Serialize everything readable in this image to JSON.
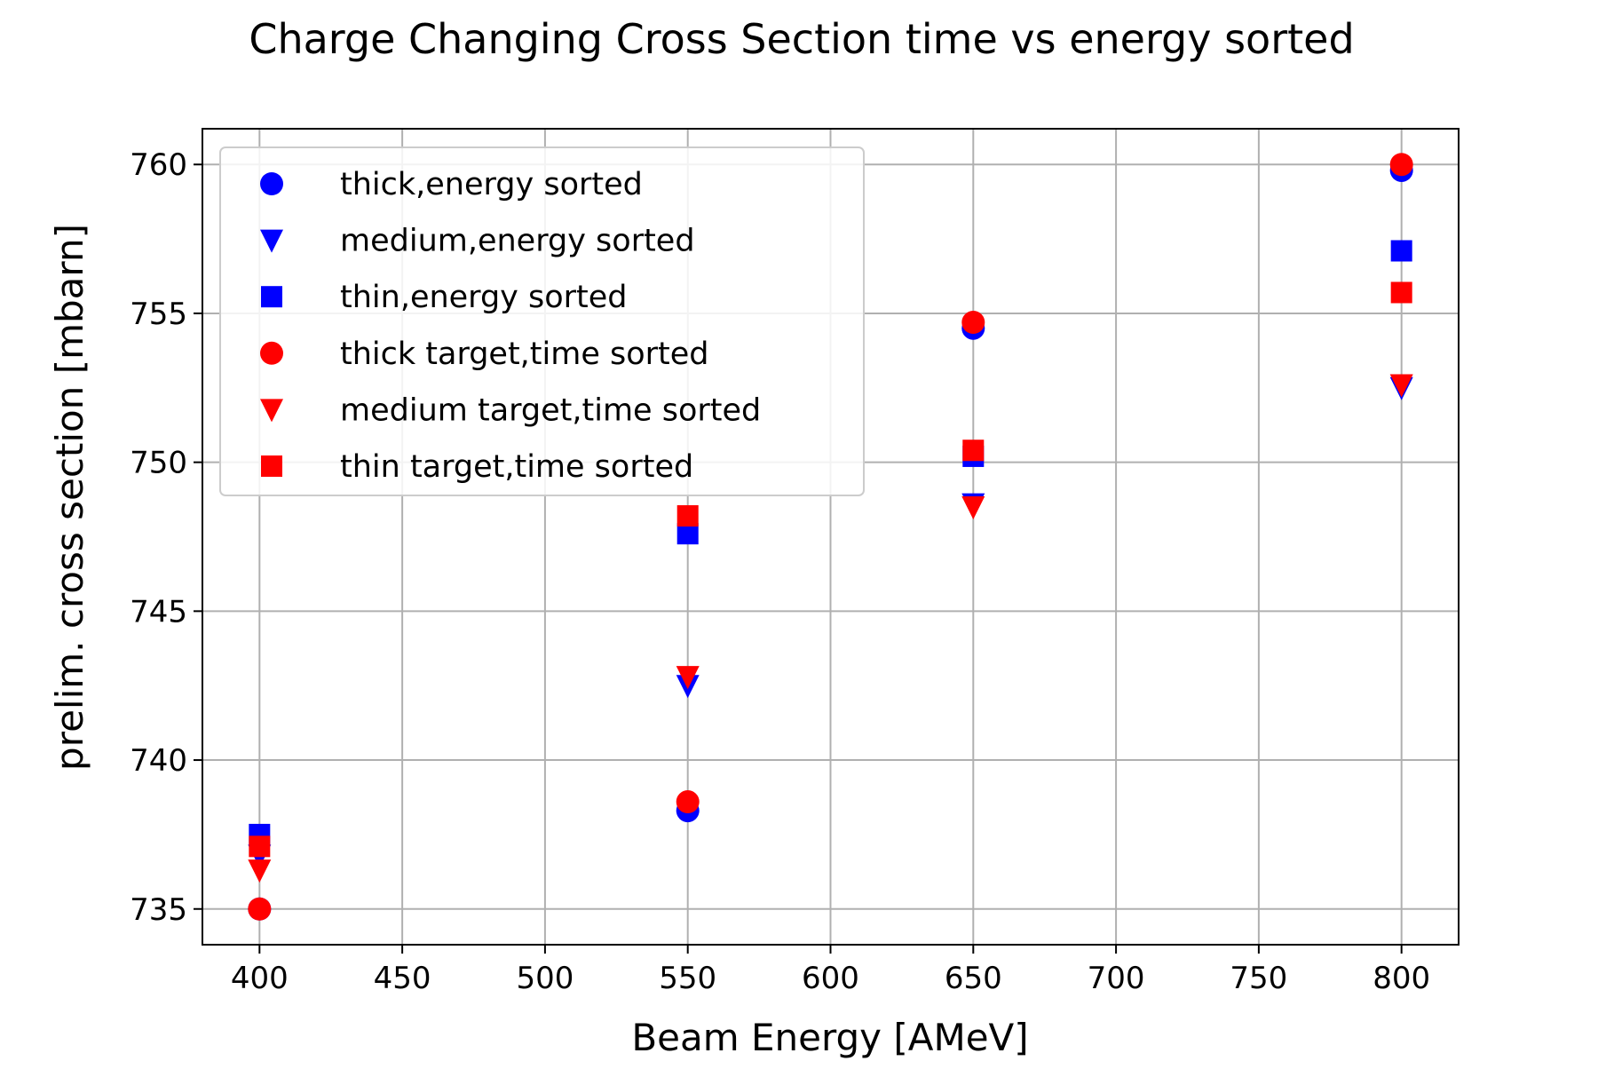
{
  "chart_data": {
    "type": "scatter",
    "title": "Charge Changing Cross Section time vs energy sorted",
    "xlabel": "Beam Energy [AMeV]",
    "ylabel": "prelim. cross section [mbarn]",
    "xlim": [
      380,
      820
    ],
    "ylim": [
      733.8,
      761.2
    ],
    "xticks": [
      400,
      450,
      500,
      550,
      600,
      650,
      700,
      750,
      800
    ],
    "yticks": [
      735,
      740,
      745,
      750,
      755,
      760
    ],
    "grid": true,
    "legend_position": "upper-left",
    "series": [
      {
        "name": "thick,energy sorted",
        "color": "#0000ff",
        "marker": "circle",
        "x": [
          400,
          550,
          650,
          800
        ],
        "y": [
          735.0,
          738.3,
          754.5,
          759.8
        ]
      },
      {
        "name": "medium,energy sorted",
        "color": "#0000ff",
        "marker": "triangle-down",
        "x": [
          400,
          550,
          650,
          800
        ],
        "y": [
          736.8,
          742.5,
          748.6,
          752.5
        ]
      },
      {
        "name": "thin,energy sorted",
        "color": "#0000ff",
        "marker": "square",
        "x": [
          400,
          550,
          650,
          800
        ],
        "y": [
          737.5,
          747.6,
          750.2,
          757.1
        ]
      },
      {
        "name": "thick target,time sorted",
        "color": "#ff0000",
        "marker": "circle",
        "x": [
          400,
          550,
          650,
          800
        ],
        "y": [
          735.0,
          738.6,
          754.7,
          760.0
        ]
      },
      {
        "name": "medium target,time sorted",
        "color": "#ff0000",
        "marker": "triangle-down",
        "x": [
          400,
          550,
          650,
          800
        ],
        "y": [
          736.3,
          742.8,
          748.5,
          752.6
        ]
      },
      {
        "name": "thin target,time sorted",
        "color": "#ff0000",
        "marker": "square",
        "x": [
          400,
          550,
          650,
          800
        ],
        "y": [
          737.1,
          748.2,
          750.4,
          755.7
        ]
      }
    ]
  }
}
